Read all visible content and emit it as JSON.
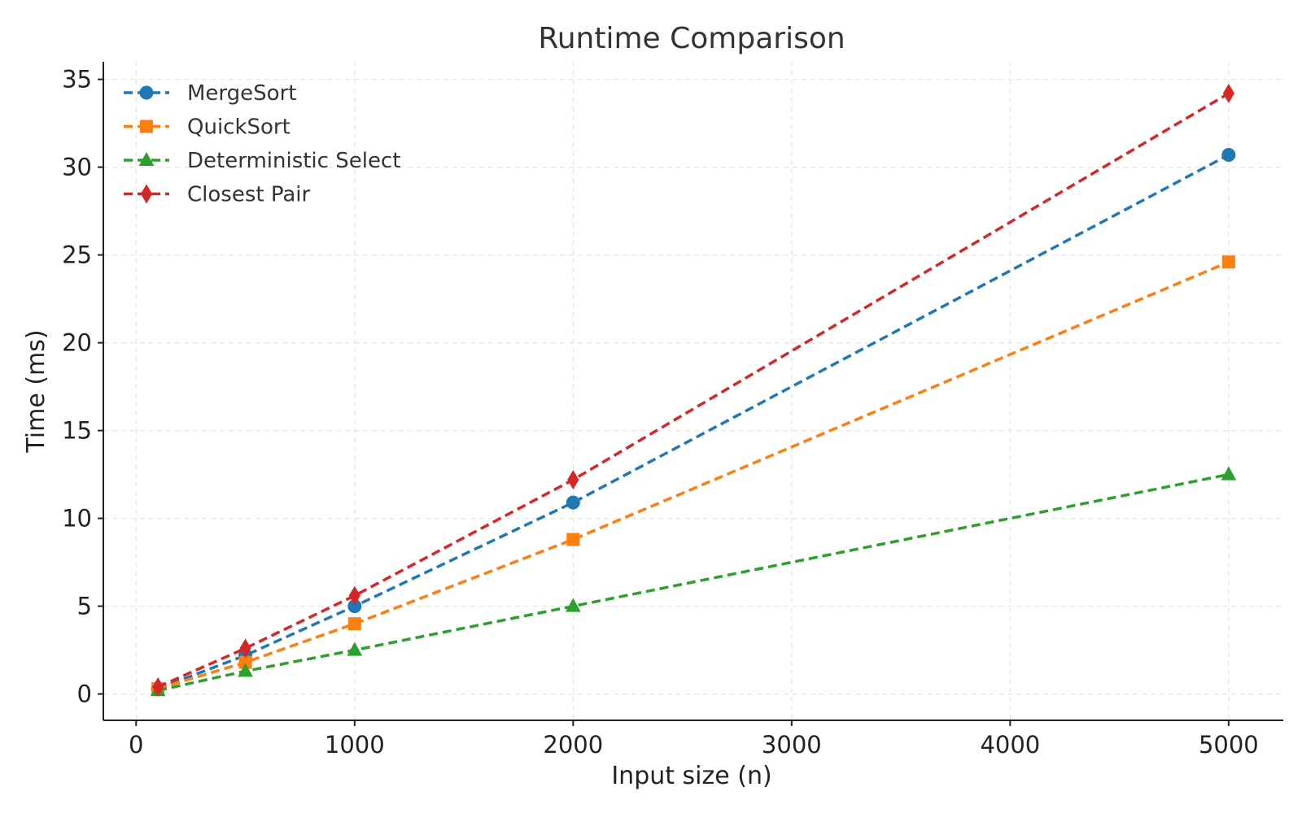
{
  "chart_data": {
    "type": "line",
    "title": "Runtime Comparison",
    "xlabel": "Input size (n)",
    "ylabel": "Time (ms)",
    "x": [
      100,
      500,
      1000,
      2000,
      5000
    ],
    "xlim": [
      -150,
      5250
    ],
    "ylim": [
      -1.5,
      36
    ],
    "xticks": [
      0,
      1000,
      2000,
      3000,
      4000,
      5000
    ],
    "yticks": [
      0,
      5,
      10,
      15,
      20,
      25,
      30,
      35
    ],
    "grid": true,
    "legend_position": "top-left",
    "series": [
      {
        "name": "MergeSort",
        "color": "#1f77b4",
        "marker": "circle",
        "line_style": "dashed",
        "values": [
          0.3,
          2.2,
          5.0,
          10.9,
          30.7
        ]
      },
      {
        "name": "QuickSort",
        "color": "#ff7f0e",
        "marker": "square",
        "line_style": "dashed",
        "values": [
          0.3,
          1.8,
          4.0,
          8.8,
          24.6
        ]
      },
      {
        "name": "Deterministic Select",
        "color": "#2ca02c",
        "marker": "triangle",
        "line_style": "dashed",
        "values": [
          0.2,
          1.3,
          2.5,
          5.0,
          12.5
        ]
      },
      {
        "name": "Closest Pair",
        "color": "#d62728",
        "marker": "diamond",
        "line_style": "dashed",
        "values": [
          0.4,
          2.6,
          5.6,
          12.2,
          34.2
        ]
      }
    ]
  }
}
